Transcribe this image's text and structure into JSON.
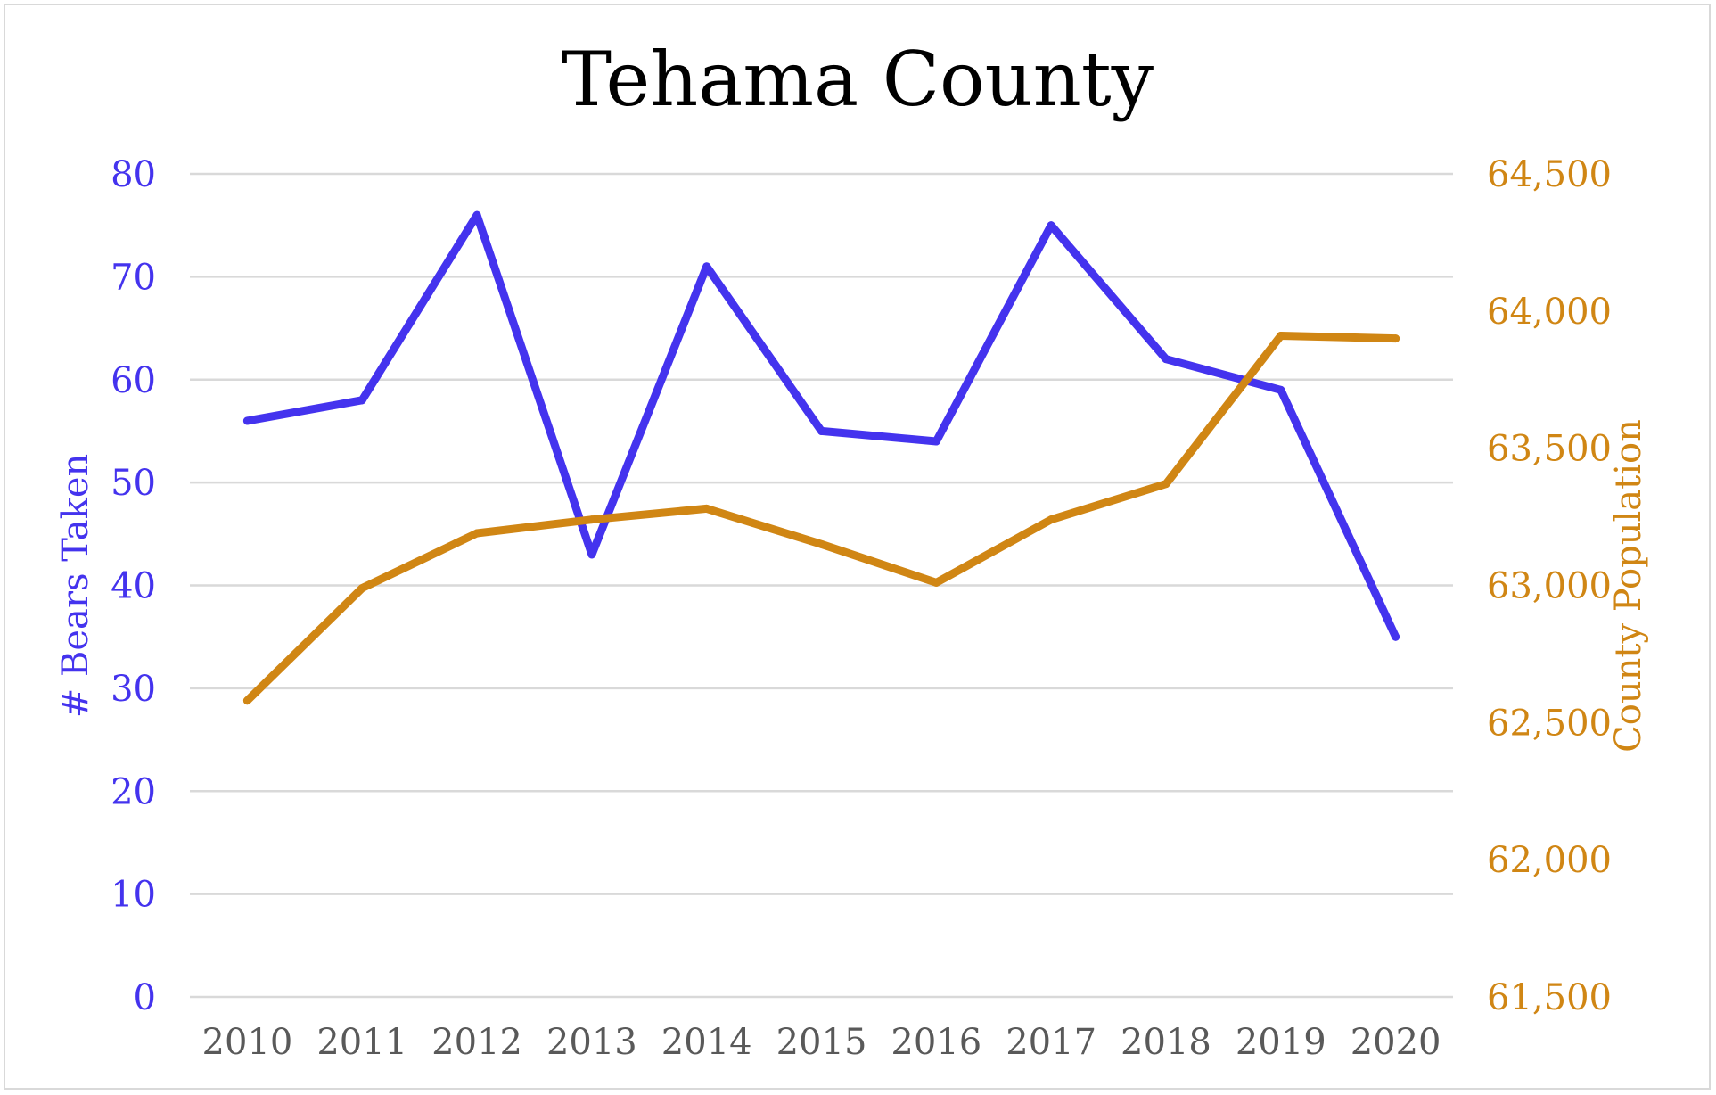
{
  "chart_data": {
    "type": "line",
    "title": "Tehama County",
    "x": [
      "2010",
      "2011",
      "2012",
      "2013",
      "2014",
      "2015",
      "2016",
      "2017",
      "2018",
      "2019",
      "2020"
    ],
    "series": [
      {
        "name": "# Bears Taken",
        "axis": "left",
        "color": "#4433ee",
        "values": [
          56,
          58,
          76,
          43,
          71,
          55,
          54,
          75,
          62,
          59,
          35
        ]
      },
      {
        "name": "County Population",
        "axis": "right",
        "color": "#d08614",
        "values": [
          62580,
          62990,
          63190,
          63240,
          63280,
          63150,
          63010,
          63240,
          63370,
          63910,
          63900
        ]
      }
    ],
    "ylabel": "# Bears Taken",
    "ylabel_right": "County Population",
    "ylim": [
      0,
      80
    ],
    "ylim_right": [
      61500,
      64500
    ],
    "yticks": [
      "0",
      "10",
      "20",
      "30",
      "40",
      "50",
      "60",
      "70",
      "80"
    ],
    "yticks_right": [
      "61,500",
      "62,000",
      "62,500",
      "63,000",
      "63,500",
      "64,000",
      "64,500"
    ],
    "grid": true,
    "legend": "none"
  },
  "colors": {
    "left_axis": "#4433ee",
    "right_axis": "#d08614",
    "x_tick": "#595959",
    "grid": "#d9d9d9"
  }
}
